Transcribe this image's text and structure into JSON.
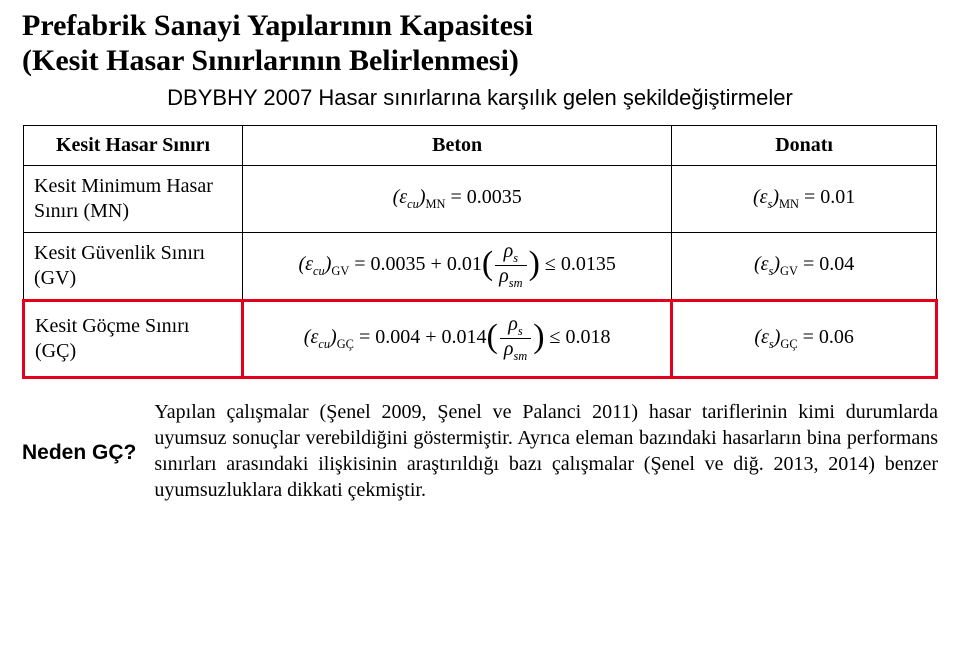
{
  "title_line1": "Prefabrik Sanayi Yapılarının Kapasitesi",
  "title_line2": "(Kesit Hasar Sınırlarının Belirlenmesi)",
  "subtitle": "DBYBHY 2007 Hasar sınırlarına karşılık gelen şekildeğiştirmeler",
  "table": {
    "headers": [
      "Kesit Hasar Sınırı",
      "Beton",
      "Donatı"
    ],
    "rows": [
      {
        "label": "Kesit Minimum Hasar Sınırı (MN)",
        "beton_sub": "MN",
        "beton_expr": "= 0.0035",
        "donati_sub": "MN",
        "donati_expr": "= 0.01"
      },
      {
        "label": "Kesit Güvenlik Sınırı (GV)",
        "beton_sub": "GV",
        "beton_pref": "= 0.0035 + 0.01",
        "beton_tail": "≤ 0.0135",
        "donati_sub": "GV",
        "donati_expr": "= 0.04"
      },
      {
        "label": "Kesit Göçme Sınırı (GÇ)",
        "beton_sub": "GÇ",
        "beton_pref": "= 0.004 + 0.014",
        "beton_tail": "≤ 0.018",
        "donati_sub": "GÇ",
        "donati_expr": "= 0.06"
      }
    ],
    "frac_num": "ρ",
    "frac_num_sub": "s",
    "frac_den": "ρ",
    "frac_den_sub": "sm",
    "eps_cu": "ε",
    "eps_cu_sub": "cu",
    "eps_s": "ε",
    "eps_s_sub": "s"
  },
  "neden_label": "Neden GÇ?",
  "paragraph": "Yapılan çalışmalar (Şenel 2009, Şenel ve Palanci 2011) hasar tariflerinin kimi durumlarda uyumsuz sonuçlar verebildiğini göstermiştir. Ayrıca eleman bazındaki hasarların bina performans sınırları arasındaki ilişkisinin araştırıldığı bazı çalışmalar (Şenel ve diğ. 2013, 2014) benzer uyumsuzluklara dikkati çekmiştir."
}
